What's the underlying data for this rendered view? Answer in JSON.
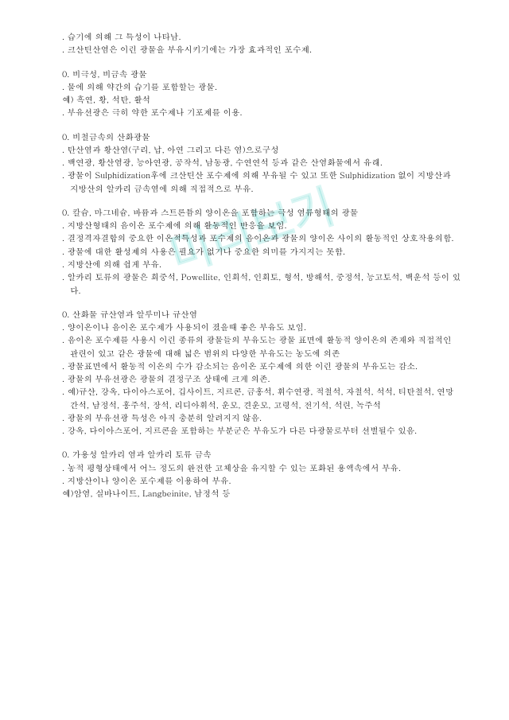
{
  "watermark": {
    "text": "미리보기",
    "color": "#4fd0c7",
    "opacity": 0.45,
    "rotate": -18,
    "font_size": 58
  },
  "intro": {
    "lines": [
      ". 습기에 의해 그 특성이 나타남.",
      ". 크산틴산염은 이런 광물을 부유시키기에는 가장 효과적인 포수제."
    ]
  },
  "sections": [
    {
      "title": "0. 비극성, 비금속 광물",
      "lines": [
        ". 물에 의해 약간의 습기를 포함할는 광물.",
        "  예) 흑연, 황, 석탄, 활석",
        ". 부유선광은 극히 약한 포수제나 기포제를 이용."
      ]
    },
    {
      "title": "0. 비철금속의 산화광물",
      "lines": [
        ". 탄산염과 황산염(구리, 납, 아연 그리고 다른 염)으로구성",
        ". 백연광, 황산염광, 능아연광, 공작석, 남동광, 수연연석 등과 같은 산염화물에서 유래.",
        ". 광물이 Sulphidization후에 크산틴산 포수제에 의해 부유될 수 있고 또한 Sulphidization 없이 지방산과 지방산의 알카리 금속염에 의해 직접적으로 부유."
      ]
    },
    {
      "title": "0. 칼슘, 마그네슘, 바륨과 스트론튬의 양이온을 포함하는 극성 염류형태의 광물",
      "lines": [
        ". 지방산형태의 음이온 포수제에 의해 활동적인 반응을 보임.",
        ". 결정격자결합의 중요한 이온적특성과 포수제의 음이온과 광물의 양이온 사이의 활동적인 상호작용의함.",
        ". 광물에 대한 활성제의 사용은 필요가 없기나 중요한 의미를 가지지는 못함.",
        ". 지방산에 의해 쉽게 부유.",
        ". 알카리 토류의 광물은 회중석, Powellite, 인회석, 인회토, 형석, 방해석, 중정석, 능고토석, 백운석 등이 있다."
      ]
    },
    {
      "title": "0. 산화물 규산염과 알루미나 규산염",
      "lines": [
        ". 양이온이나 음이온 포수제가 사용되이 졌을때 좋은 부유도 보임.",
        ". 음이온 포수제를 사용시 이런 종류의 광물들의 부유도는 광물 표면에 활동적 양이온의 존재와 직접적인 관련이 있고  같은 광물에 대해 넓은 범위의 다양한 부유도는 농도에 의존",
        ". 광물표면에서 활동적 이온의 수가 감소되는 음이온 포수제에 의한 이런 광물의 부유도는 감소.",
        ". 광물의 부유선광은 광물의 결정구조 상태에  크게 의존.",
        ". 예)규산, 강옥, 다이아스포어, 깁사이트, 지르콘, 금홍석, 휘수연광, 적철석, 자철석, 석석, 티탄철석, 연망간석, 남정석, 홍주석, 장석, 리디아휘석, 운모, 견운모, 고령석, 전기석, 석련, 녹주석",
        ". 광물의 부유선광 특성은 아직 충분히 알려지지 않음.",
        ". 강옥, 다이아스포어, 지르콘을 포함하는 부분군은 부유도가 다른 다광물로부터 선별될수 있음."
      ]
    },
    {
      "title": "0. 가용성 알카리 염과 알카리 토류 금속",
      "lines": [
        ". 농적 평형상태에서 어느 정도의 완전한 고체상을 유지할 수 있는 포화된 용액속에서 부유.",
        ". 지방산이나 양이온 포수제를 이용하여 부유.",
        "  예)암염, 실바나이트, Langbeinite, 남정석 등"
      ]
    }
  ]
}
